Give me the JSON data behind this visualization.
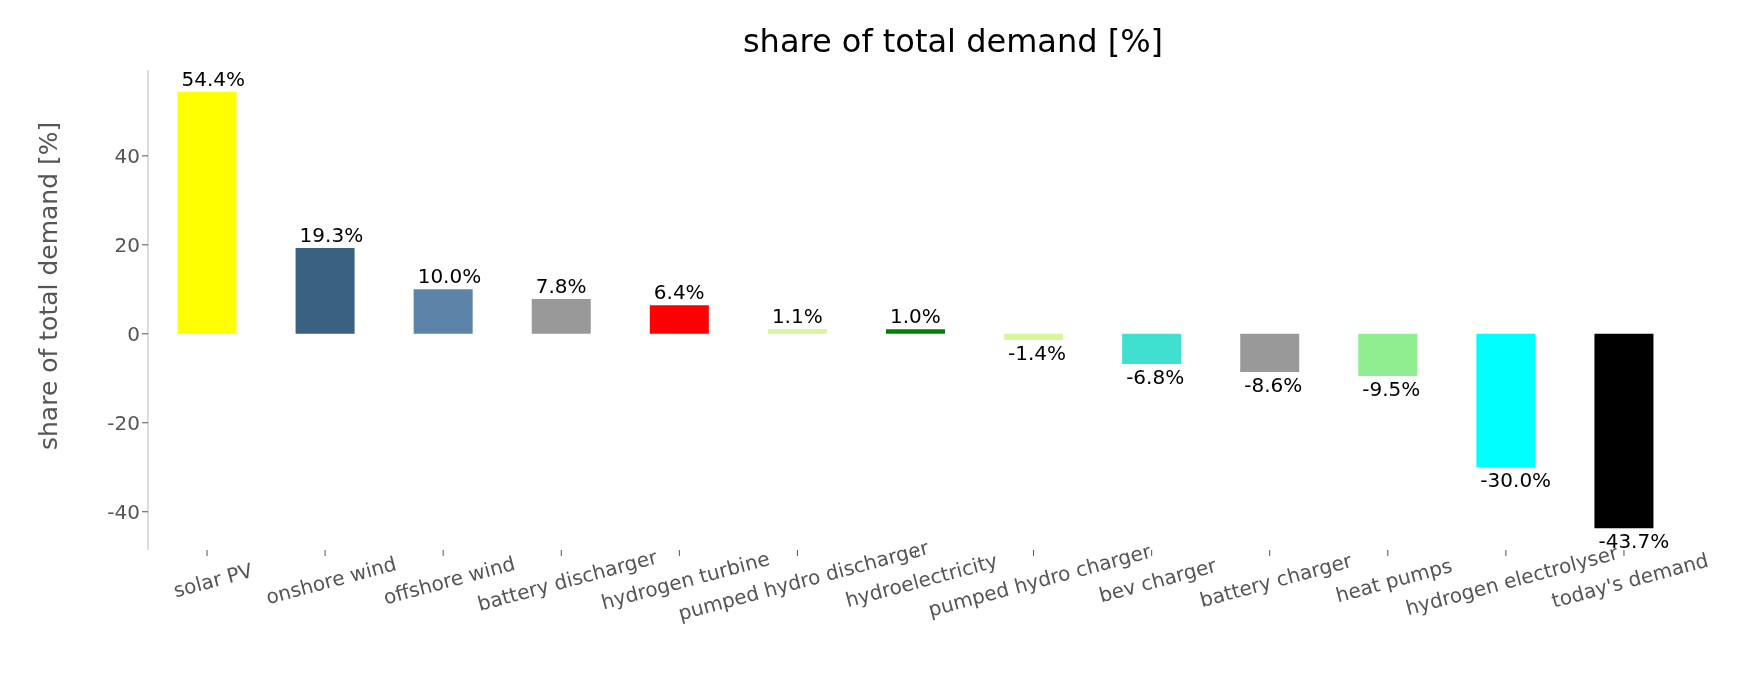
{
  "chart_data": {
    "type": "bar",
    "title": "share of total demand [%]",
    "ylabel": "share of total demand [%]",
    "categories": [
      "solar PV",
      "onshore wind",
      "offshore wind",
      "battery discharger",
      "hydrogen turbine",
      "pumped hydro discharger",
      "hydroelectricity",
      "pumped hydro charger",
      "bev charger",
      "battery charger",
      "heat pumps",
      "hydrogen electrolyser",
      "today's demand"
    ],
    "values": [
      54.4,
      19.3,
      10.0,
      7.8,
      6.4,
      1.1,
      1.0,
      -1.4,
      -6.8,
      -8.6,
      -9.5,
      -30.0,
      -43.7
    ],
    "value_labels": [
      "54.4%",
      "19.3%",
      "10.0%",
      "7.8%",
      "6.4%",
      "1.1%",
      "1.0%",
      "-1.4%",
      "-6.8%",
      "-8.6%",
      "-9.5%",
      "-30.0%",
      "-43.7%"
    ],
    "colors": [
      "#ffff00",
      "#3b6182",
      "#5b84a8",
      "#999999",
      "#ff0000",
      "#d8f5a0",
      "#008000",
      "#d8f5a0",
      "#40e0d0",
      "#999999",
      "#90ee90",
      "#00ffff",
      "#000000"
    ],
    "ylim": [
      -48.6,
      59.3
    ],
    "yticks": [
      -40,
      -20,
      0,
      20,
      40
    ],
    "grid": false,
    "legend": false
  }
}
